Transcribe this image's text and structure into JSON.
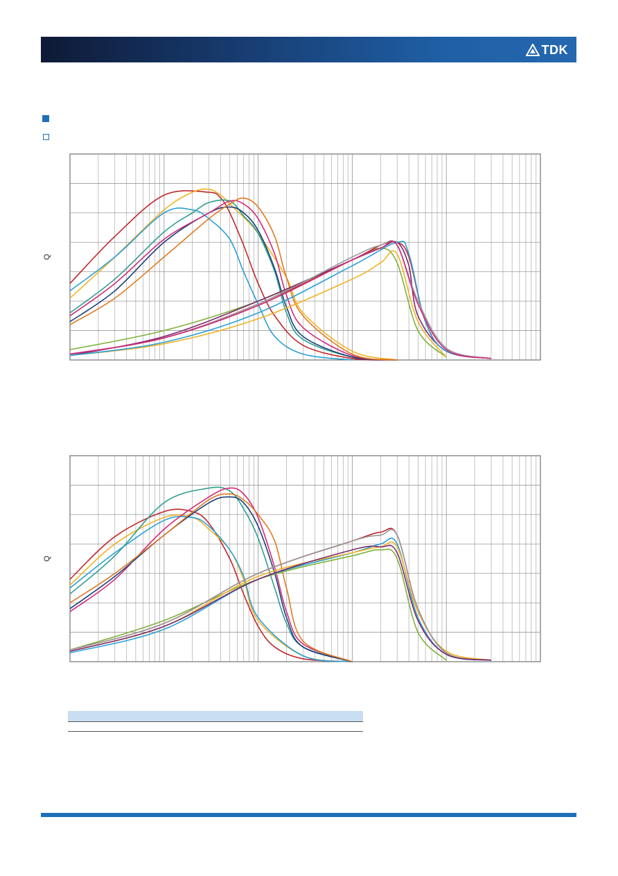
{
  "header": {
    "brand": "TDK",
    "logo_icon": "tdk-logo-icon"
  },
  "colors": {
    "header_dark": "#0e1a36",
    "header_light": "#2568b0",
    "accent_blue": "#1f6fb8",
    "table_header": "#c9dff1",
    "grid": "#9a9a9a"
  },
  "chart_data": [
    {
      "type": "line",
      "title": "",
      "xlabel": "",
      "ylabel": "Q",
      "xscale": "log",
      "xlim": [
        1,
        100000
      ],
      "ylim": [
        0,
        140
      ],
      "grid": true,
      "series": [
        {
          "color": "#c0272d",
          "x": [
            1,
            3,
            10,
            30,
            40,
            50,
            70,
            100,
            150,
            300,
            1000,
            3000
          ],
          "y": [
            52,
            84,
            112,
            114,
            110,
            100,
            78,
            52,
            30,
            10,
            1,
            0
          ]
        },
        {
          "color": "#f0b323",
          "x": [
            1,
            3,
            10,
            20,
            30,
            40,
            50,
            70,
            100,
            200,
            300,
            1000,
            3000
          ],
          "y": [
            42,
            70,
            102,
            114,
            116,
            112,
            106,
            97,
            86,
            56,
            32,
            6,
            0
          ]
        },
        {
          "color": "#2a9fd8",
          "x": [
            1,
            3,
            10,
            20,
            30,
            50,
            70,
            100,
            150,
            300,
            1000
          ],
          "y": [
            47,
            70,
            100,
            102,
            96,
            82,
            60,
            38,
            16,
            4,
            0
          ]
        },
        {
          "color": "#2e9e8f",
          "x": [
            1,
            3,
            10,
            20,
            30,
            50,
            70,
            100,
            150,
            200,
            300,
            1000,
            3000
          ],
          "y": [
            32,
            55,
            87,
            100,
            107,
            108,
            98,
            86,
            60,
            32,
            14,
            2,
            0
          ]
        },
        {
          "color": "#1a3f7a",
          "x": [
            1,
            3,
            10,
            30,
            50,
            70,
            100,
            150,
            200,
            300,
            1000,
            3000
          ],
          "y": [
            26,
            47,
            80,
            100,
            104,
            100,
            88,
            62,
            36,
            16,
            2,
            0
          ]
        },
        {
          "color": "#d02a7a",
          "x": [
            1,
            3,
            10,
            30,
            50,
            70,
            100,
            150,
            200,
            300,
            1000,
            3000
          ],
          "y": [
            30,
            52,
            82,
            100,
            108,
            106,
            96,
            72,
            44,
            22,
            3,
            0
          ]
        },
        {
          "color": "#e07a1f",
          "x": [
            1,
            3,
            10,
            30,
            50,
            70,
            100,
            150,
            200,
            300,
            1000,
            3000
          ],
          "y": [
            24,
            42,
            70,
            96,
            106,
            110,
            104,
            84,
            56,
            30,
            4,
            0
          ]
        },
        {
          "color": "#7fb13a",
          "x": [
            1,
            10,
            100,
            1000,
            2000,
            3000,
            5000,
            10000
          ],
          "y": [
            7,
            20,
            40,
            68,
            76,
            66,
            20,
            2
          ]
        },
        {
          "color": "#f0b323",
          "x": [
            1,
            10,
            100,
            1000,
            2000,
            3000,
            5000,
            10000
          ],
          "y": [
            3,
            11,
            28,
            55,
            66,
            72,
            26,
            2
          ]
        },
        {
          "color": "#7a2a6e",
          "x": [
            1,
            10,
            100,
            1000,
            2000,
            3000,
            4000,
            5000,
            10000,
            30000
          ],
          "y": [
            3,
            16,
            40,
            68,
            76,
            80,
            64,
            30,
            6,
            1
          ]
        },
        {
          "color": "#c0272d",
          "x": [
            1,
            10,
            100,
            1000,
            2000,
            3000,
            4000,
            6000,
            10000,
            30000
          ],
          "y": [
            4,
            15,
            38,
            68,
            78,
            80,
            70,
            26,
            6,
            1
          ]
        },
        {
          "color": "#2a9fd8",
          "x": [
            1,
            10,
            100,
            1000,
            3000,
            4000,
            6000,
            10000,
            30000
          ],
          "y": [
            3,
            12,
            32,
            64,
            80,
            72,
            26,
            6,
            1
          ]
        },
        {
          "color": "#9a9a9a",
          "x": [
            1,
            10,
            100,
            1000,
            2000,
            3000,
            5000,
            10000,
            30000
          ],
          "y": [
            4,
            15,
            38,
            70,
            78,
            78,
            40,
            8,
            1
          ]
        },
        {
          "color": "#d02a7a",
          "x": [
            1,
            10,
            100,
            1000,
            2000,
            3000,
            5000,
            10000,
            30000
          ],
          "y": [
            4,
            15,
            37,
            68,
            76,
            78,
            38,
            7,
            1
          ]
        }
      ]
    },
    {
      "type": "line",
      "title": "",
      "xlabel": "",
      "ylabel": "Q",
      "xscale": "log",
      "xlim": [
        1,
        100000
      ],
      "ylim": [
        0,
        140
      ],
      "grid": true,
      "series": [
        {
          "color": "#c0272d",
          "x": [
            1,
            3,
            10,
            20,
            30,
            50,
            70,
            100,
            150,
            300,
            1000
          ],
          "y": [
            56,
            85,
            102,
            102,
            94,
            70,
            46,
            24,
            10,
            2,
            0
          ]
        },
        {
          "color": "#f0b323",
          "x": [
            1,
            3,
            10,
            20,
            30,
            50,
            70,
            100,
            300,
            1000
          ],
          "y": [
            52,
            80,
            98,
            98,
            90,
            76,
            56,
            28,
            4,
            0
          ]
        },
        {
          "color": "#2a9fd8",
          "x": [
            1,
            3,
            10,
            20,
            30,
            50,
            70,
            100,
            300,
            1000
          ],
          "y": [
            50,
            74,
            96,
            98,
            92,
            76,
            58,
            30,
            4,
            0
          ]
        },
        {
          "color": "#2e9e8f",
          "x": [
            1,
            3,
            10,
            30,
            50,
            70,
            100,
            150,
            200,
            300,
            1000
          ],
          "y": [
            46,
            72,
            108,
            118,
            116,
            104,
            84,
            50,
            26,
            10,
            0
          ]
        },
        {
          "color": "#d02a7a",
          "x": [
            1,
            3,
            10,
            30,
            50,
            70,
            100,
            150,
            200,
            300,
            1000
          ],
          "y": [
            34,
            56,
            90,
            112,
            118,
            114,
            98,
            64,
            34,
            12,
            0
          ]
        },
        {
          "color": "#1a3f7a",
          "x": [
            1,
            3,
            10,
            30,
            50,
            70,
            100,
            150,
            200,
            300,
            1000
          ],
          "y": [
            36,
            58,
            86,
            108,
            112,
            108,
            92,
            60,
            30,
            10,
            0
          ]
        },
        {
          "color": "#e07a1f",
          "x": [
            1,
            3,
            10,
            30,
            50,
            70,
            100,
            150,
            200,
            300,
            1000
          ],
          "y": [
            40,
            60,
            86,
            110,
            114,
            110,
            100,
            82,
            50,
            14,
            0
          ]
        },
        {
          "color": "#7fb13a",
          "x": [
            1,
            10,
            100,
            1000,
            2000,
            3000,
            5000,
            10000
          ],
          "y": [
            8,
            28,
            56,
            72,
            76,
            70,
            20,
            1
          ]
        },
        {
          "color": "#2a9fd8",
          "x": [
            1,
            10,
            100,
            1000,
            2000,
            3000,
            5000,
            10000,
            30000
          ],
          "y": [
            6,
            22,
            56,
            74,
            80,
            80,
            30,
            5,
            1
          ]
        },
        {
          "color": "#f0b323",
          "x": [
            1,
            10,
            100,
            1000,
            2000,
            3000,
            5000,
            10000,
            30000
          ],
          "y": [
            7,
            24,
            58,
            74,
            78,
            78,
            34,
            7,
            1
          ]
        },
        {
          "color": "#c0272d",
          "x": [
            1,
            10,
            100,
            1000,
            2000,
            3000,
            5000,
            10000,
            30000
          ],
          "y": [
            8,
            26,
            60,
            82,
            88,
            86,
            36,
            6,
            1
          ]
        },
        {
          "color": "#9a9a9a",
          "x": [
            1,
            10,
            100,
            1000,
            2000,
            3000,
            5000,
            10000,
            30000
          ],
          "y": [
            8,
            26,
            60,
            82,
            86,
            86,
            36,
            6,
            1
          ]
        },
        {
          "color": "#7a2a6e",
          "x": [
            1,
            10,
            100,
            1000,
            2000,
            3000,
            5000,
            10000,
            30000
          ],
          "y": [
            7,
            24,
            56,
            76,
            78,
            74,
            28,
            5,
            1
          ]
        }
      ]
    }
  ]
}
